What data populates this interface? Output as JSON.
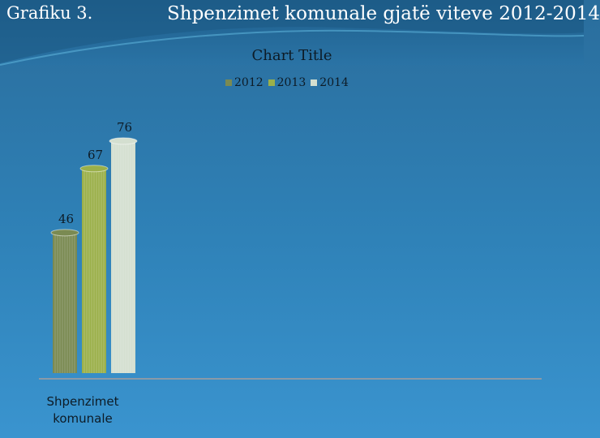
{
  "slide": {
    "label": "Grafiku 3.",
    "title": "Shpenzimet komunale gjatë viteve 2012-2014"
  },
  "chart_data": {
    "type": "bar",
    "title": "Chart Title",
    "categories": [
      "Shpenzimet komunale"
    ],
    "category_lines": [
      "Shpenzimet",
      "komunale"
    ],
    "series": [
      {
        "name": "2012",
        "values": [
          46
        ],
        "color": "#7a8a52"
      },
      {
        "name": "2013",
        "values": [
          67
        ],
        "color": "#9bb04a"
      },
      {
        "name": "2014",
        "values": [
          76
        ],
        "color": "#d4dfd0"
      }
    ],
    "ylim": [
      0,
      85
    ],
    "grid": false,
    "legend_position": "top",
    "data_labels": true
  }
}
